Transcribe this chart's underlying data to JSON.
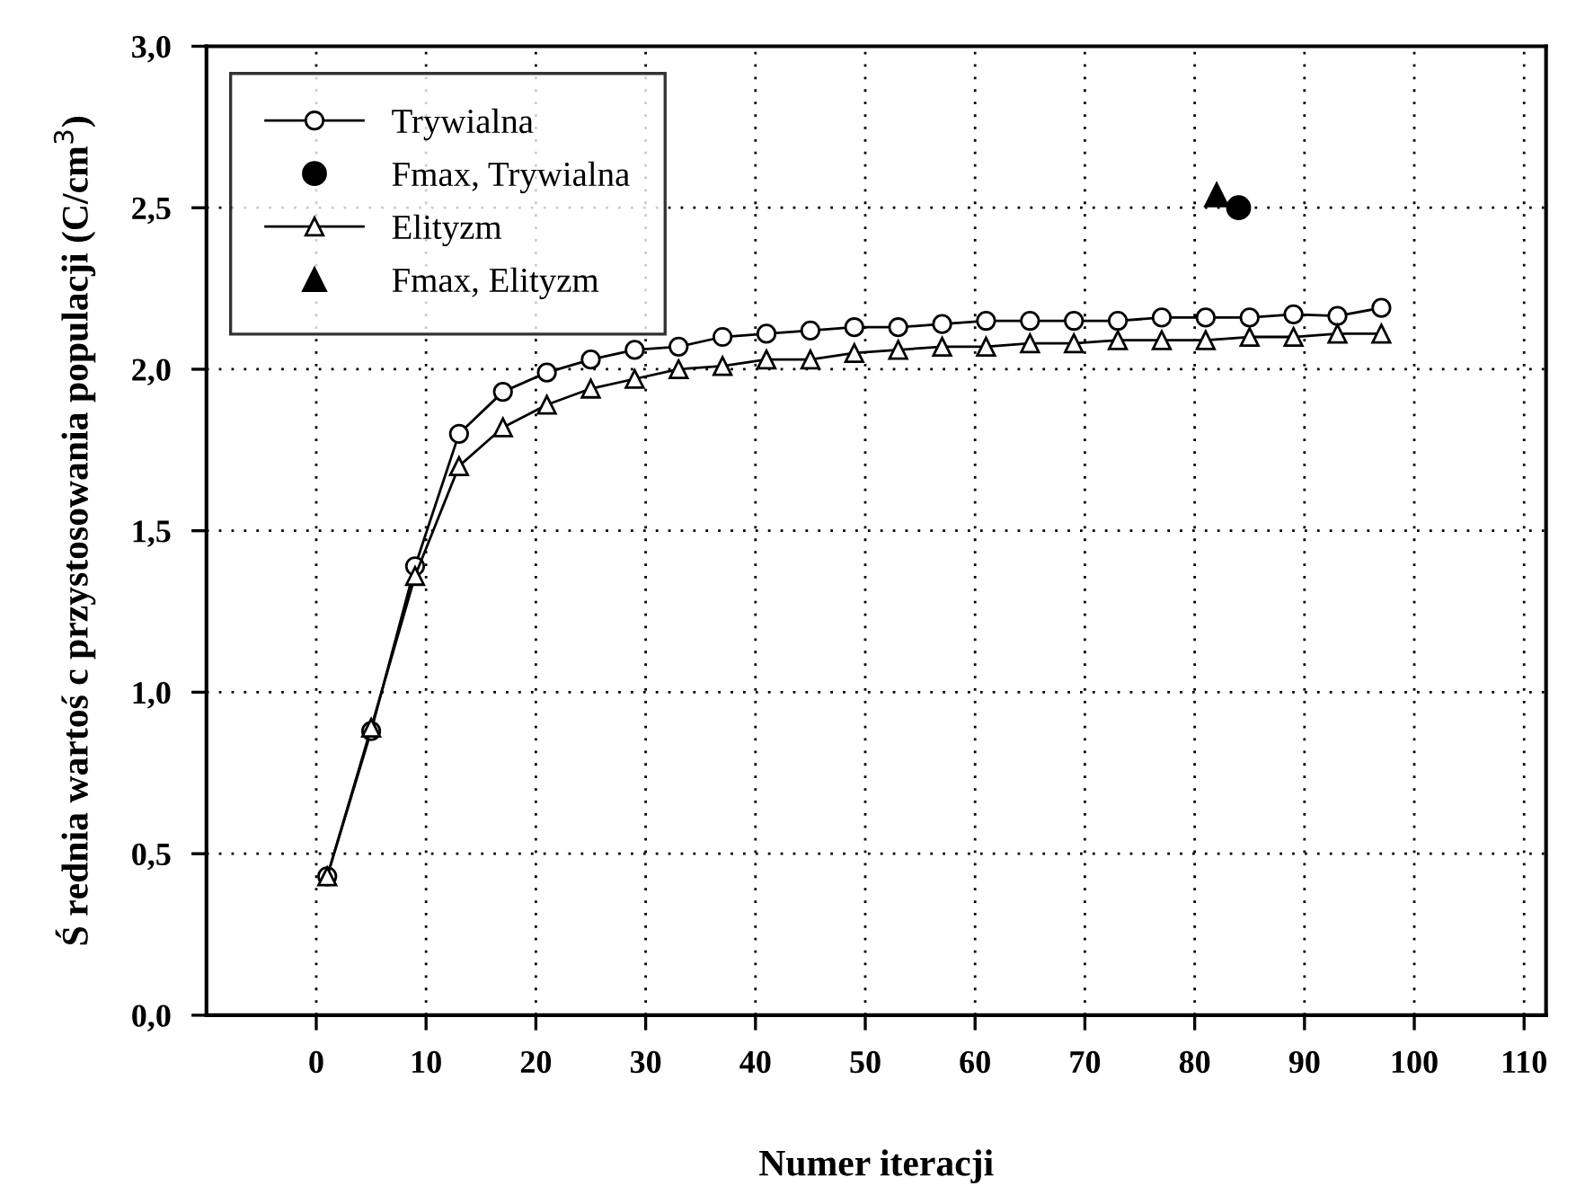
{
  "chart_data": {
    "type": "line",
    "xlabel": "Numer iteracji",
    "ylabel": "Ś rednia wartoś c przystosowania populacji (C/cm$^{3}$)",
    "xlim": [
      -10,
      112
    ],
    "xticks": [
      0,
      10,
      20,
      30,
      40,
      50,
      60,
      70,
      80,
      90,
      100,
      110
    ],
    "ylim": [
      0,
      3
    ],
    "yticks": [
      {
        "value": 0,
        "label": "0,0"
      },
      {
        "value": 0.5,
        "label": "0,5"
      },
      {
        "value": 1,
        "label": "1,0"
      },
      {
        "value": 1.5,
        "label": "1,5"
      },
      {
        "value": 2,
        "label": "2,0"
      },
      {
        "value": 2.5,
        "label": "2,5"
      },
      {
        "value": 3,
        "label": "3,0"
      }
    ],
    "grid": true,
    "legend": "top left",
    "line_style": "solid",
    "series": [
      {
        "name": "Trywialna",
        "marker": "circle",
        "color": "#000000",
        "x": [
          1,
          5,
          9,
          13,
          17,
          21,
          25,
          29,
          33,
          37,
          41,
          45,
          49,
          53,
          57,
          61,
          65,
          69,
          73,
          77,
          81,
          85,
          89,
          93,
          97
        ],
        "values": [
          0.43,
          0.88,
          1.39,
          1.8,
          1.93,
          1.99,
          2.03,
          2.06,
          2.07,
          2.1,
          2.11,
          2.12,
          2.13,
          2.13,
          2.14,
          2.15,
          2.15,
          2.15,
          2.15,
          2.16,
          2.16,
          2.16,
          2.17,
          2.165,
          2.19
        ]
      },
      {
        "name": "Fmax, Trywialna",
        "type": "scatter",
        "marker": "circle",
        "color": "#000000",
        "x": [
          84
        ],
        "values": [
          2.5
        ]
      },
      {
        "name": "Elityzm",
        "marker": "triangle",
        "color": "#000000",
        "x": [
          1,
          5,
          9,
          13,
          17,
          21,
          25,
          29,
          33,
          37,
          41,
          45,
          49,
          53,
          57,
          61,
          65,
          69,
          73,
          77,
          81,
          85,
          89,
          93,
          97
        ],
        "values": [
          0.43,
          0.89,
          1.36,
          1.7,
          1.82,
          1.89,
          1.94,
          1.97,
          2.0,
          2.01,
          2.03,
          2.03,
          2.05,
          2.06,
          2.07,
          2.07,
          2.08,
          2.08,
          2.09,
          2.09,
          2.09,
          2.1,
          2.1,
          2.11,
          2.11
        ]
      },
      {
        "name": "Fmax, Elityzm",
        "type": "scatter",
        "marker": "triangle",
        "color": "#000000",
        "x": [
          82
        ],
        "values": [
          2.54
        ]
      }
    ]
  }
}
